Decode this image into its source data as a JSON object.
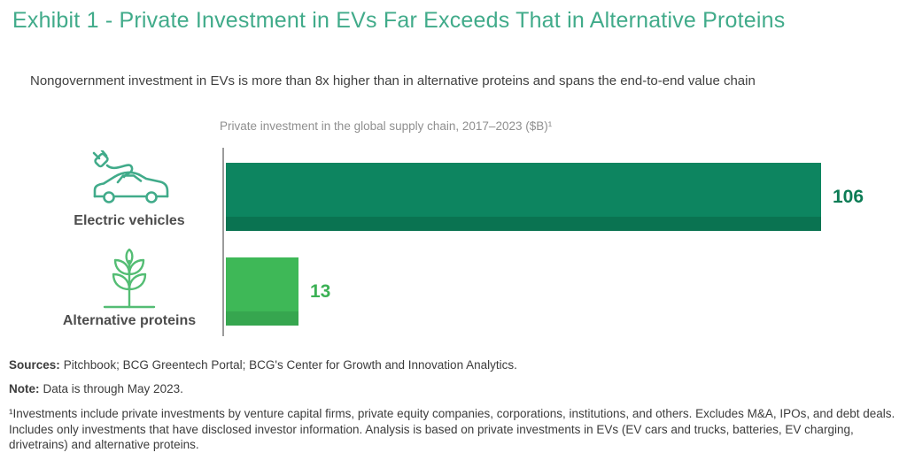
{
  "header": {
    "title": "Exhibit 1 - Private Investment in EVs Far Exceeds That in Alternative Proteins",
    "subtitle": "Nongovernment investment in EVs is more than 8x higher than in alternative proteins and spans the end-to-end value chain"
  },
  "chart": {
    "title": "Private investment in the global supply chain, 2017–2023 ($B)¹",
    "bars": [
      {
        "label": "Electric vehicles",
        "value": 106,
        "value_label": "106",
        "icon": "electric-car-icon",
        "color_main": "#0D8560",
        "color_shade": "#0A7351",
        "value_color": "#0C7C55"
      },
      {
        "label": "Alternative proteins",
        "value": 13,
        "value_label": "13",
        "icon": "plant-icon",
        "color_main": "#3EB857",
        "color_shade": "#36A64F",
        "value_color": "#3CB155"
      }
    ]
  },
  "chart_data": {
    "type": "bar",
    "orientation": "horizontal",
    "title": "Private investment in the global supply chain, 2017–2023 ($B)¹",
    "categories": [
      "Electric vehicles",
      "Alternative proteins"
    ],
    "values": [
      106,
      13
    ],
    "unit": "$B",
    "xlim": [
      0,
      110
    ],
    "grid": false,
    "legend": false,
    "data_labels": [
      "106",
      "13"
    ],
    "bar_colors": [
      "#0D8560",
      "#3EB857"
    ]
  },
  "footer": {
    "sources_label": "Sources:",
    "sources_text": "Pitchbook; BCG Greentech Portal; BCG's Center for Growth and Innovation Analytics.",
    "note_label": "Note:",
    "note_text": "Data is through May 2023.",
    "footnote": "¹Investments include private investments by venture capital firms, private equity companies, corporations, institutions, and others. Excludes M&A, IPOs, and debt deals. Includes only investments that have disclosed investor information. Analysis is based on private investments in EVs (EV cars and trucks, batteries, EV charging, drivetrains) and alternative proteins."
  },
  "colors": {
    "title_teal": "#41AB8A",
    "text_dark": "#3F3F3F",
    "chart_title_gray": "#8F8F8F",
    "axis_gray": "#9B9B9B",
    "ev_bar_green": "#0D8560",
    "protein_bar_green": "#3EB857"
  }
}
